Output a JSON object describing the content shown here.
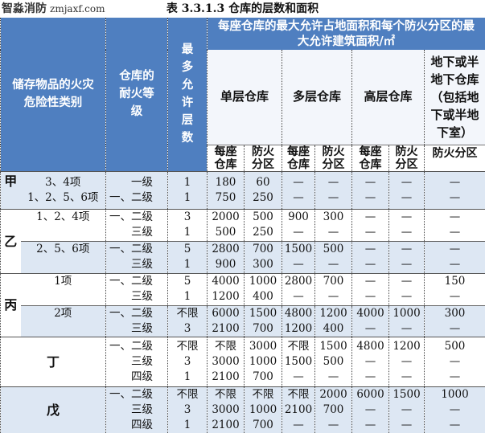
{
  "title": "表 3.3.1.3 仓库的层数和面积",
  "header": {
    "category": "储存物品的火灾危险性类别",
    "fire_rating": "仓库的耐火等级",
    "max_floors": "最多允许层数",
    "area_group": "每座仓库的最大允许占地面积和每个防火分区的最大允许建筑面积/㎡",
    "single": "单层仓库",
    "multi": "多层仓库",
    "high": "高层仓库",
    "underground": "地下或半地下仓库（包括地下或半地下室）",
    "per_building": "每座仓库",
    "per_zone": "防火分区",
    "ug_zone": "防火分区"
  },
  "groups": [
    {
      "hazard": "甲",
      "hazard_rows": 1,
      "items": [
        "3、4项",
        "1、2、5、6项"
      ],
      "grades": [
        "一级",
        "一、二级"
      ],
      "floors": [
        "1",
        "1"
      ],
      "values": [
        [
          "180",
          "750"
        ],
        [
          "60",
          "250"
        ],
        [
          "—",
          "—"
        ],
        [
          "—",
          "—"
        ],
        [
          "—",
          "—"
        ],
        [
          "—",
          "—"
        ],
        [
          "—",
          "—"
        ]
      ]
    },
    {
      "hazard": "乙",
      "hazard_rows": 2,
      "items": [
        "1、2、4项",
        ""
      ],
      "grades": [
        "一、二级",
        "三级"
      ],
      "floors": [
        "3",
        "1"
      ],
      "values": [
        [
          "2000",
          "500"
        ],
        [
          "500",
          "250"
        ],
        [
          "900",
          "—"
        ],
        [
          "300",
          "—"
        ],
        [
          "—",
          "—"
        ],
        [
          "—",
          "—"
        ],
        [
          "—",
          "—"
        ]
      ]
    },
    {
      "items": [
        "2、5、6项",
        ""
      ],
      "grades": [
        "一、二级",
        "三级"
      ],
      "floors": [
        "5",
        "1"
      ],
      "values": [
        [
          "2800",
          "900"
        ],
        [
          "700",
          "300"
        ],
        [
          "1500",
          "—"
        ],
        [
          "500",
          "—"
        ],
        [
          "—",
          "—"
        ],
        [
          "—",
          "—"
        ],
        [
          "—",
          "—"
        ]
      ]
    },
    {
      "hazard": "丙",
      "hazard_rows": 2,
      "items": [
        "1项",
        ""
      ],
      "grades": [
        "一、二级",
        "三级"
      ],
      "floors": [
        "5",
        "1"
      ],
      "values": [
        [
          "4000",
          "1200"
        ],
        [
          "1000",
          "400"
        ],
        [
          "2800",
          "—"
        ],
        [
          "700",
          "—"
        ],
        [
          "—",
          "—"
        ],
        [
          "—",
          "—"
        ],
        [
          "150",
          "—"
        ]
      ]
    },
    {
      "items": [
        "2项",
        ""
      ],
      "grades": [
        "一、二级",
        "三级"
      ],
      "floors": [
        "不限",
        "3"
      ],
      "values": [
        [
          "6000",
          "2100"
        ],
        [
          "1500",
          "700"
        ],
        [
          "4800",
          "1200"
        ],
        [
          "1200",
          "400"
        ],
        [
          "4000",
          "—"
        ],
        [
          "1000",
          "—"
        ],
        [
          "300",
          "—"
        ]
      ]
    },
    {
      "hazard": "丁",
      "merged": true,
      "grades": [
        "一、二级",
        "三级",
        "四级"
      ],
      "floors": [
        "不限",
        "3",
        "1"
      ],
      "values": [
        [
          "不限",
          "3000",
          "2100"
        ],
        [
          "3000",
          "1000",
          "700"
        ],
        [
          "不限",
          "1500",
          "—"
        ],
        [
          "1500",
          "500",
          "—"
        ],
        [
          "4800",
          "—",
          "—"
        ],
        [
          "1200",
          "—",
          "—"
        ],
        [
          "500",
          "—",
          "—"
        ]
      ]
    },
    {
      "hazard": "戊",
      "merged": true,
      "grades": [
        "一、二级",
        "三级",
        "四级"
      ],
      "floors": [
        "不限",
        "3",
        "1"
      ],
      "values": [
        [
          "不限",
          "3000",
          "2100"
        ],
        [
          "不限",
          "1000",
          "700"
        ],
        [
          "不限",
          "2100",
          "—"
        ],
        [
          "2000",
          "700",
          "—"
        ],
        [
          "6000",
          "—",
          "—"
        ],
        [
          "1500",
          "—",
          "—"
        ],
        [
          "1000",
          "—",
          "—"
        ]
      ]
    }
  ],
  "watermark": {
    "name": "智淼消防",
    "url": "zmjaxf.com"
  },
  "colors": {
    "header_blue": "#4f7fc0",
    "row_light": "#dde7f3"
  }
}
